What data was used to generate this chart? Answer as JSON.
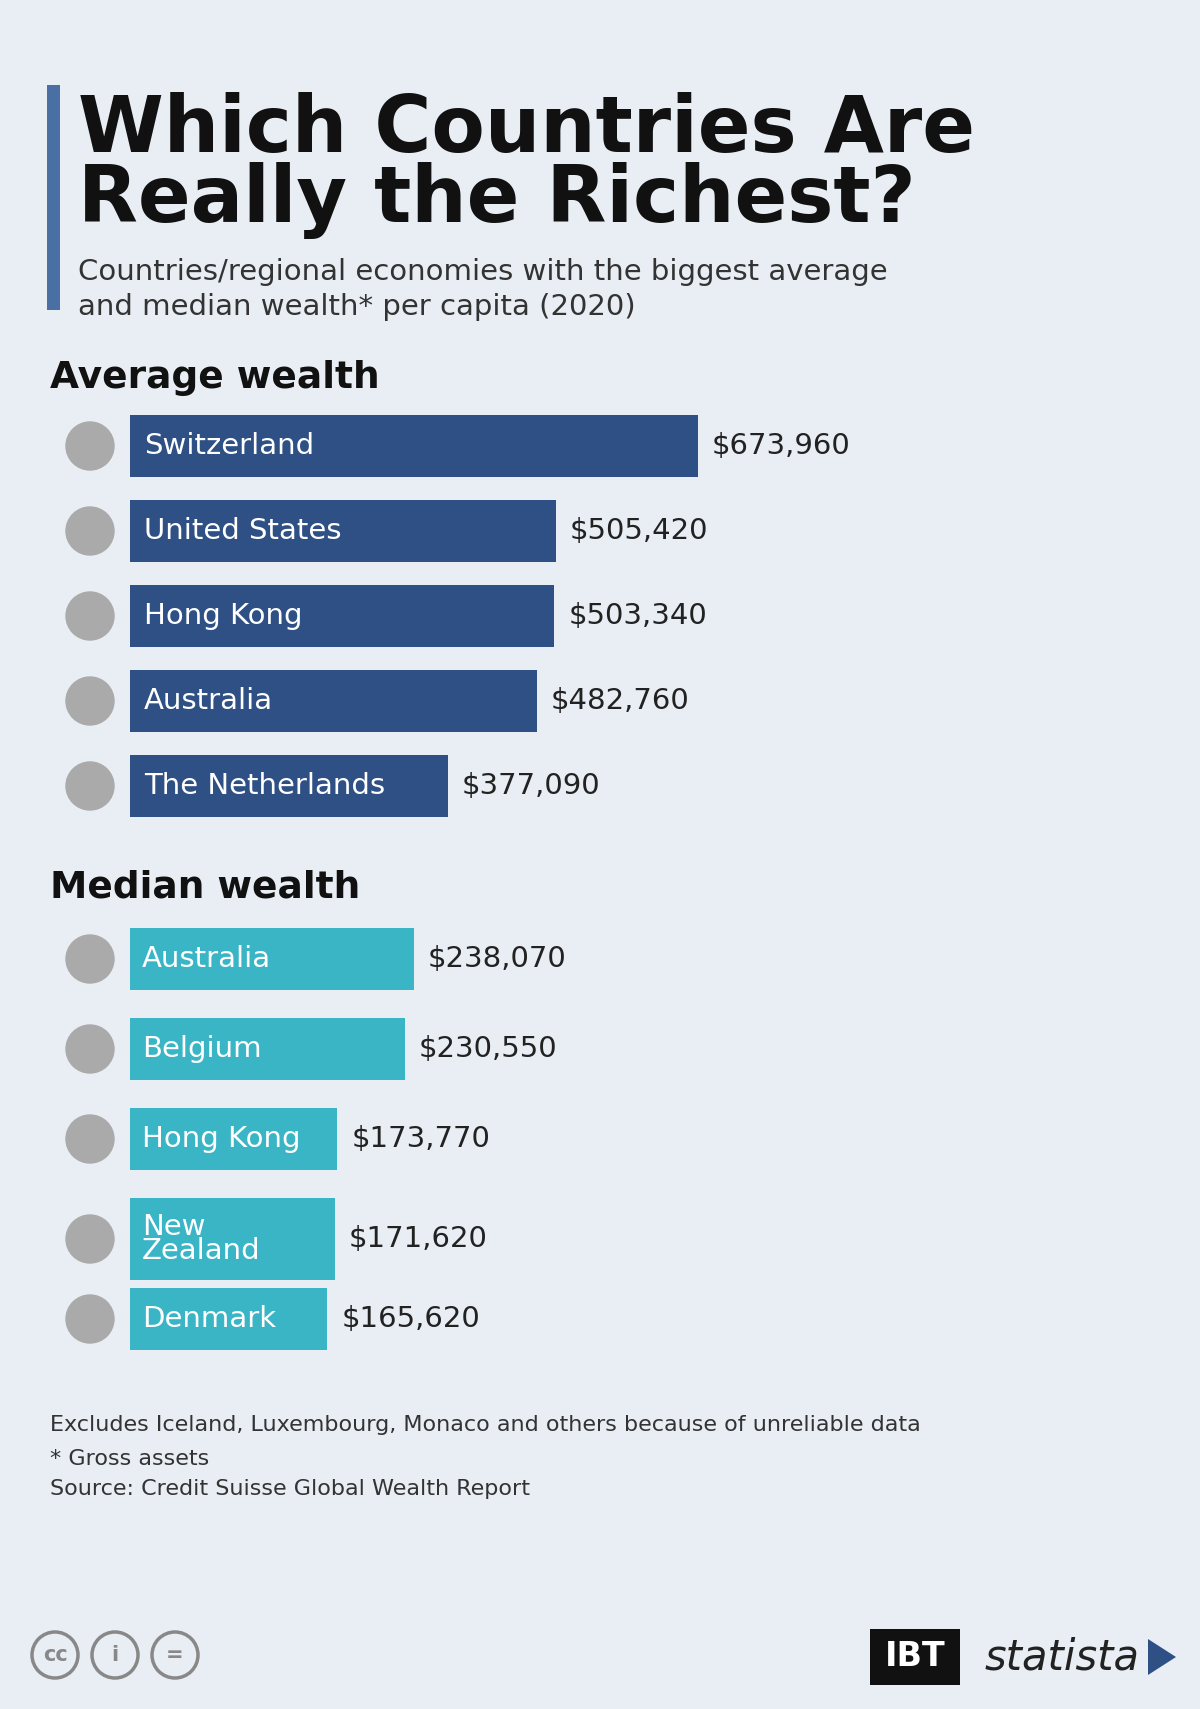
{
  "title_line1": "Which Countries Are",
  "title_line2": "Really the Richest?",
  "subtitle_line1": "Countries/regional economies with the biggest average",
  "subtitle_line2": "and median wealth* per capita (2020)",
  "background_color": "#e8eef4",
  "title_bar_color": "#4a6fa5",
  "avg_bar_color": "#2e5085",
  "median_bar_color": "#3ab5c6",
  "avg_section_label": "Average wealth",
  "median_section_label": "Median wealth",
  "avg_countries": [
    "Switzerland",
    "United States",
    "Hong Kong",
    "Australia",
    "The Netherlands"
  ],
  "avg_values": [
    673960,
    505420,
    503340,
    482760,
    377090
  ],
  "avg_labels": [
    "$673,960",
    "$505,420",
    "$503,340",
    "$482,760",
    "$377,090"
  ],
  "median_countries_line1": [
    "Australia",
    "Belgium",
    "Hong Kong",
    "New",
    "Denmark"
  ],
  "median_countries_line2": [
    "",
    "",
    "",
    "Zealand",
    ""
  ],
  "median_values": [
    238070,
    230550,
    173770,
    171620,
    165620
  ],
  "median_labels": [
    "$238,070",
    "$230,550",
    "$173,770",
    "$171,620",
    "$165,620"
  ],
  "footnote1": "Excludes Iceland, Luxembourg, Monaco and others because of unreliable data",
  "footnote2": "* Gross assets",
  "footnote3": "Source: Credit Suisse Global Wealth Report",
  "avg_max": 700000,
  "median_max": 260000
}
